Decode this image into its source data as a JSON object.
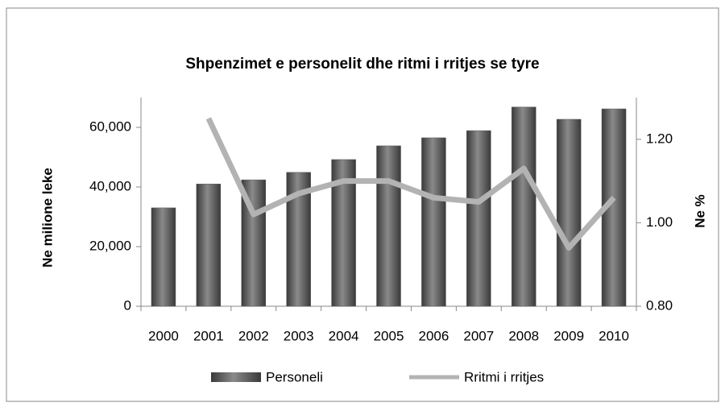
{
  "chart_data": {
    "type": "bar_line",
    "title": "Shpenzimet e personelit dhe ritmi i rritjes se tyre",
    "y_label": "Ne milione leke",
    "y2_label": "Ne %",
    "categories": [
      "2000",
      "2001",
      "2002",
      "2003",
      "2004",
      "2005",
      "2006",
      "2007",
      "2008",
      "2009",
      "2010"
    ],
    "series": [
      {
        "name": "Personeli",
        "type": "bar",
        "color": "#595959",
        "values": [
          33000,
          41000,
          42400,
          44900,
          49200,
          53800,
          56500,
          58900,
          66800,
          62700,
          66200
        ]
      },
      {
        "name": "Rritmi i rritjes",
        "type": "line",
        "axis": "y2",
        "color": "#b3b3b3",
        "values": [
          null,
          1.25,
          1.02,
          1.07,
          1.1,
          1.1,
          1.06,
          1.05,
          1.13,
          0.94,
          1.06
        ]
      }
    ],
    "ylim": [
      0,
      70000
    ],
    "yticks": [
      0,
      {
        "value": 20000,
        "label": "20,000"
      },
      {
        "value": 40000,
        "label": "40,000"
      },
      {
        "value": 60000,
        "label": "60,000"
      }
    ],
    "y2lim": [
      0.8,
      1.3
    ],
    "y2ticks": [
      {
        "value": 0.8,
        "label": "0.80"
      },
      {
        "value": 1.0,
        "label": "1.00"
      },
      {
        "value": 1.2,
        "label": "1.20"
      }
    ],
    "legend": "bottom"
  }
}
